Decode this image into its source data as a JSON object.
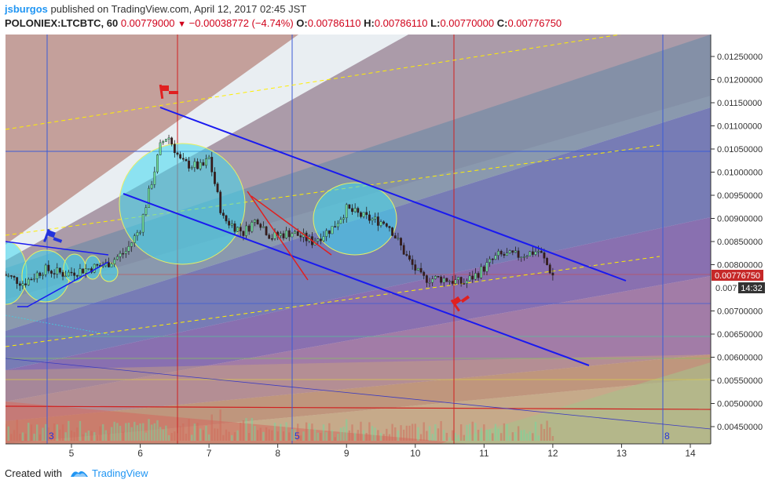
{
  "header": {
    "user": "jsburgos",
    "published": "published on TradingView.com, April 12, 2017 02:45 JST",
    "symbol": "POLONIEX:LTCBTC, 60",
    "last": "0.00779000",
    "change": "−0.00038772 (−4.74%)",
    "o_label": "O:",
    "o_value": "0.00786110",
    "h_label": "H:",
    "h_value": "0.00786110",
    "l_label": "L:",
    "l_value": "0.00770000",
    "c_label": "C:",
    "c_value": "0.00776750"
  },
  "price_axis": {
    "ticks": [
      "0.01250000",
      "0.01200000",
      "0.01150000",
      "0.01100000",
      "0.01050000",
      "0.01000000",
      "0.00950000",
      "0.00900000",
      "0.00850000",
      "0.00800000",
      "0.00750000",
      "0.00700000",
      "0.00650000",
      "0.00600000",
      "0.00550000",
      "0.00500000",
      "0.00450000"
    ],
    "current_price": "0.00776750",
    "countdown": "14:32",
    "hidden_label": "0.007"
  },
  "time_axis": {
    "labels": [
      "5",
      "6",
      "7",
      "8",
      "9",
      "10",
      "11",
      "12",
      "13",
      "14"
    ]
  },
  "cycle_labels": [
    "3",
    "5",
    "8"
  ],
  "footer": {
    "created_with": "Created with",
    "brand": "TradingView"
  },
  "colors": {
    "red": "#d0021b",
    "blue_line": "#0000ee",
    "yellow_dash": "#ffee00",
    "circle_fill": "#40d8f0",
    "axis_bg": "#ffffff",
    "price_label_bg": "#c62828"
  },
  "chart_data": {
    "type": "candlestick",
    "symbol": "POLONIEX:LTCBTC",
    "interval": "60",
    "y_axis_range": [
      0.0042,
      0.0131
    ],
    "x_axis": "days of April 2017",
    "last_price": 0.0077675,
    "ohlc_last": {
      "open": 0.0078611,
      "high": 0.0078611,
      "low": 0.0077,
      "close": 0.0077675
    },
    "price_path": [
      {
        "day": 4.0,
        "price": 0.0078
      },
      {
        "day": 4.3,
        "price": 0.0076
      },
      {
        "day": 4.6,
        "price": 0.0079
      },
      {
        "day": 4.9,
        "price": 0.0078
      },
      {
        "day": 5.2,
        "price": 0.0079
      },
      {
        "day": 5.5,
        "price": 0.008
      },
      {
        "day": 5.8,
        "price": 0.0083
      },
      {
        "day": 6.0,
        "price": 0.0088
      },
      {
        "day": 6.15,
        "price": 0.0097
      },
      {
        "day": 6.3,
        "price": 0.0106
      },
      {
        "day": 6.4,
        "price": 0.0108
      },
      {
        "day": 6.6,
        "price": 0.0102
      },
      {
        "day": 6.9,
        "price": 0.0101
      },
      {
        "day": 7.0,
        "price": 0.0103
      },
      {
        "day": 7.2,
        "price": 0.009
      },
      {
        "day": 7.5,
        "price": 0.0087
      },
      {
        "day": 7.7,
        "price": 0.009
      },
      {
        "day": 7.9,
        "price": 0.0086
      },
      {
        "day": 8.2,
        "price": 0.0087
      },
      {
        "day": 8.5,
        "price": 0.0085
      },
      {
        "day": 8.8,
        "price": 0.0088
      },
      {
        "day": 9.0,
        "price": 0.0092
      },
      {
        "day": 9.3,
        "price": 0.009
      },
      {
        "day": 9.6,
        "price": 0.0089
      },
      {
        "day": 9.9,
        "price": 0.0081
      },
      {
        "day": 10.1,
        "price": 0.0077
      },
      {
        "day": 10.4,
        "price": 0.0077
      },
      {
        "day": 10.7,
        "price": 0.0076
      },
      {
        "day": 10.9,
        "price": 0.0078
      },
      {
        "day": 11.2,
        "price": 0.0082
      },
      {
        "day": 11.5,
        "price": 0.0082
      },
      {
        "day": 11.8,
        "price": 0.0083
      },
      {
        "day": 12.0,
        "price": 0.00777
      }
    ]
  }
}
